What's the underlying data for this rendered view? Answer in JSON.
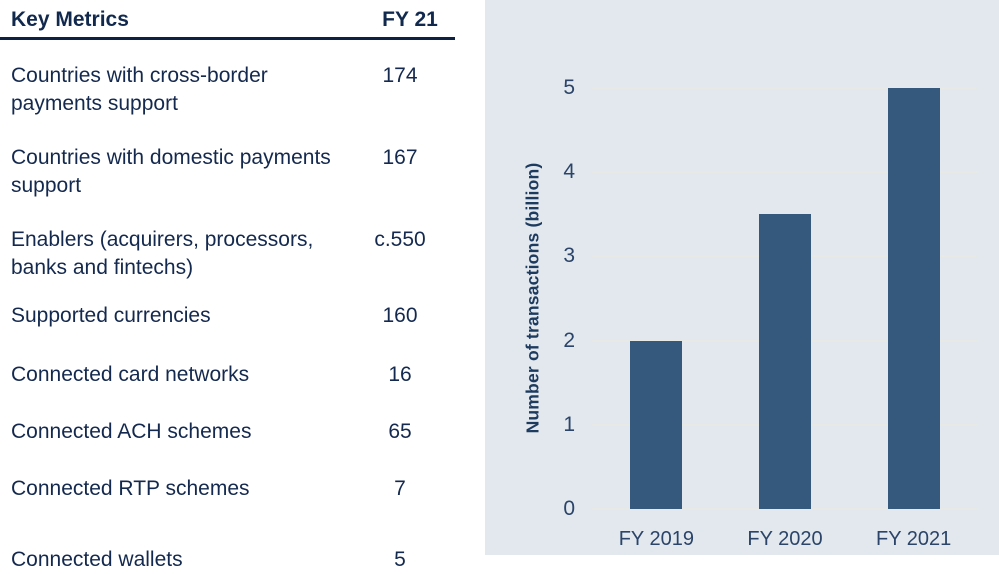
{
  "table": {
    "header": {
      "metric": "Key Metrics",
      "value": "FY 21"
    },
    "rows": [
      {
        "metric": "Countries with cross-border payments support",
        "value": "174"
      },
      {
        "metric": "Countries with domestic payments support",
        "value": "167"
      },
      {
        "metric": "Enablers (acquirers, processors, banks and fintechs)",
        "value": "c.550"
      },
      {
        "metric": "Supported currencies",
        "value": "160"
      },
      {
        "metric": "Connected card networks",
        "value": "16"
      },
      {
        "metric": "Connected ACH schemes",
        "value": "65"
      },
      {
        "metric": "Connected RTP schemes",
        "value": "7"
      },
      {
        "metric": "Connected wallets",
        "value": "5"
      }
    ],
    "note": "last row only partially visible at bottom edge of screenshot"
  },
  "chart_data": {
    "type": "bar",
    "categories": [
      "FY 2019",
      "FY 2020",
      "FY 2021"
    ],
    "values": [
      2,
      3.5,
      5
    ],
    "title": "",
    "xlabel": "",
    "ylabel": "Number of transactions (billion)",
    "yticks": [
      0,
      1,
      2,
      3,
      4,
      5
    ],
    "ylim": [
      0,
      5
    ],
    "grid": true,
    "legend": false,
    "colors": {
      "bar": "#34597c",
      "panel_bg": "#e2e8ee",
      "gridline": "#e7e9e4",
      "tick_text": "#2b4468",
      "axis_title_text": "#1d3a5f",
      "table_text": "#14294e",
      "table_rule": "#0e2142"
    }
  }
}
